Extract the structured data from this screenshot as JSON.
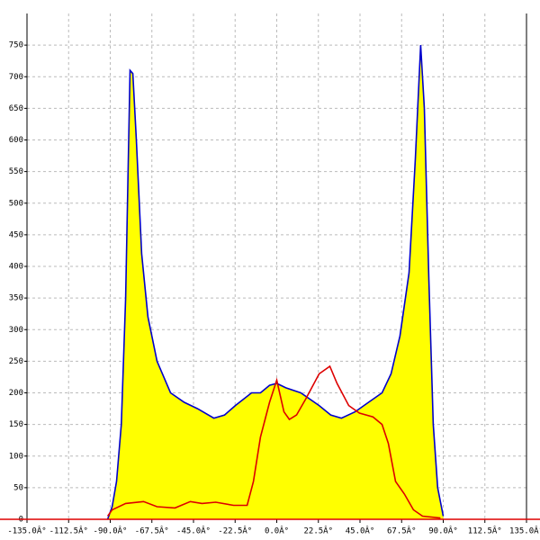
{
  "chart_data": {
    "type": "area",
    "xlim": [
      -135,
      135
    ],
    "ylim": [
      0,
      800
    ],
    "xticks": [
      {
        "value": -135,
        "label": "-135.0Â°"
      },
      {
        "value": -112.5,
        "label": "-112.5Â°"
      },
      {
        "value": -90,
        "label": "-90.0Â°"
      },
      {
        "value": -67.5,
        "label": "-67.5Â°"
      },
      {
        "value": -45,
        "label": "-45.0Â°"
      },
      {
        "value": -22.5,
        "label": "-22.5Â°"
      },
      {
        "value": 0,
        "label": "0.0Â°"
      },
      {
        "value": 22.5,
        "label": "22.5Â°"
      },
      {
        "value": 45,
        "label": "45.0Â°"
      },
      {
        "value": 67.5,
        "label": "67.5Â°"
      },
      {
        "value": 90,
        "label": "90.0Â°"
      },
      {
        "value": 112.5,
        "label": "112.5Â°"
      },
      {
        "value": 135,
        "label": "135.0Â°"
      }
    ],
    "yticks": [
      0,
      50,
      100,
      150,
      200,
      250,
      300,
      350,
      400,
      450,
      500,
      550,
      600,
      650,
      700,
      750
    ],
    "grid": true,
    "series": [
      {
        "color": "#0000cc",
        "fill": "#ffff00",
        "x": [
          -91.4,
          -89,
          -86.6,
          -84,
          -81.7,
          -79.3,
          -77.8,
          -75.9,
          -73,
          -69.6,
          -64.7,
          -57.4,
          -50,
          -42.8,
          -34,
          -28.2,
          -22.4,
          -13.6,
          -8.8,
          -3.9,
          0,
          4.9,
          13,
          22.9,
          29.2,
          35,
          42.3,
          49.6,
          56.9,
          61.8,
          66.6,
          71.5,
          74.9,
          77.8,
          79.8,
          82.2,
          84.6,
          87,
          90
        ],
        "values": [
          0,
          20,
          60,
          150,
          350,
          710,
          705,
          600,
          420,
          320,
          250,
          200,
          185,
          175,
          160,
          165,
          180,
          200,
          200,
          212,
          215,
          208,
          200,
          180,
          165,
          160,
          170,
          185,
          200,
          230,
          290,
          390,
          570,
          750,
          650,
          380,
          150,
          50,
          5
        ]
      },
      {
        "color": "#dd0000",
        "x": [
          -91.4,
          -89,
          -81.7,
          -72,
          -64.7,
          -55,
          -46.7,
          -40.4,
          -33,
          -23.3,
          -16,
          -12.6,
          -8.8,
          -3.9,
          0,
          3.9,
          6.8,
          10.7,
          15.6,
          22.9,
          28.7,
          32.6,
          38.9,
          44.7,
          52,
          56.9,
          60.3,
          64.2,
          69,
          73.9,
          78.8,
          88.5
        ],
        "values": [
          5,
          15,
          25,
          28,
          20,
          18,
          28,
          25,
          27,
          22,
          22,
          60,
          130,
          185,
          220,
          170,
          158,
          165,
          190,
          230,
          242,
          215,
          180,
          168,
          162,
          150,
          120,
          60,
          40,
          15,
          5,
          2
        ]
      }
    ]
  }
}
